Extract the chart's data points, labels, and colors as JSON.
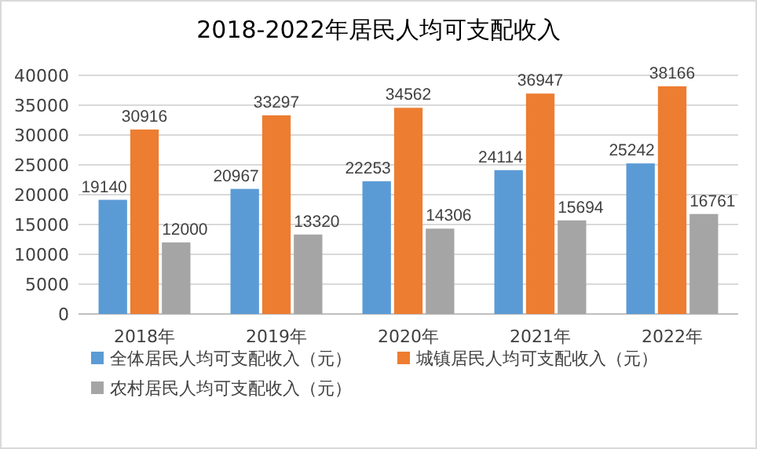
{
  "chart_data": {
    "type": "bar",
    "title": "2018-2022年居民人均可支配收入",
    "categories": [
      "2018年",
      "2019年",
      "2020年",
      "2021年",
      "2022年"
    ],
    "series": [
      {
        "name": "全体居民人均可支配收入（元）",
        "color": "#5b9bd5",
        "values": [
          19140,
          20967,
          22253,
          24114,
          25242
        ]
      },
      {
        "name": "城镇居民人均可支配收入（元）",
        "color": "#ed7d31",
        "values": [
          30916,
          33297,
          34562,
          36947,
          38166
        ]
      },
      {
        "name": "农村居民人均可支配收入（元）",
        "color": "#a5a5a5",
        "values": [
          12000,
          13320,
          14306,
          15694,
          16761
        ]
      }
    ],
    "ylim": [
      0,
      40000
    ],
    "yticks": [
      0,
      5000,
      10000,
      15000,
      20000,
      25000,
      30000,
      35000,
      40000
    ],
    "grid": "y",
    "legend": "bottom",
    "data_labels": true
  }
}
